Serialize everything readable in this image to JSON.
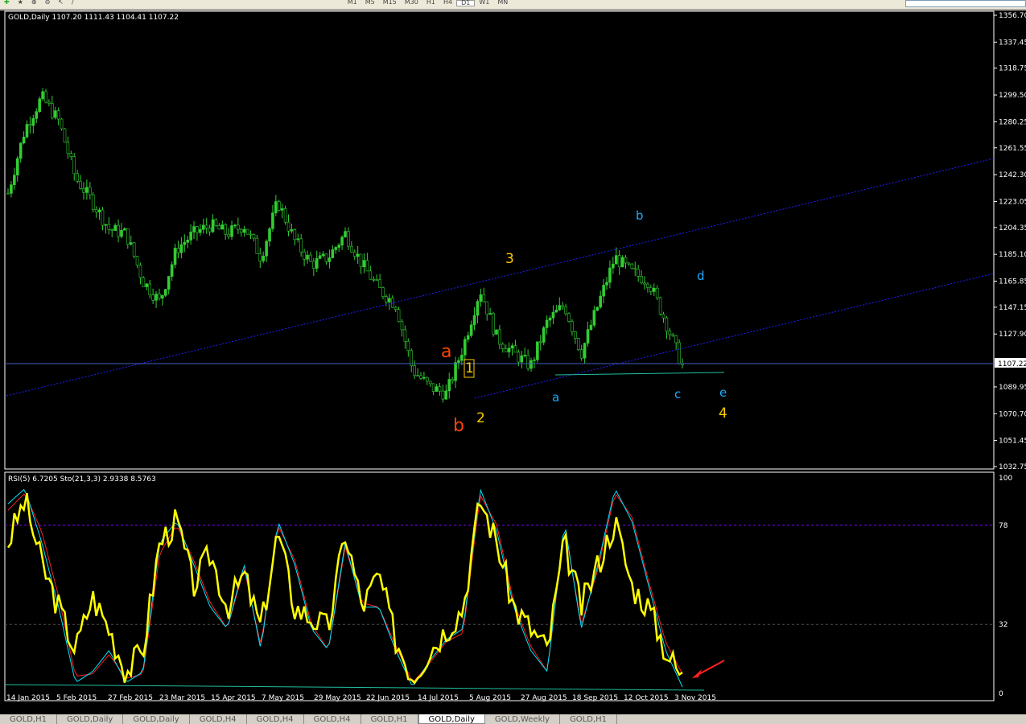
{
  "toolbar": {
    "timeframes": [
      "M1",
      "M5",
      "M15",
      "M30",
      "H1",
      "H4",
      "D1",
      "W1",
      "MN"
    ],
    "active": "D1"
  },
  "chart": {
    "header": "GOLD,Daily  1107.20 1111.43 1104.41 1107.22",
    "current_price": "1107.22",
    "price_ticks": [
      "1356.70",
      "1337.45",
      "1318.75",
      "1299.50",
      "1280.25",
      "1261.55",
      "1242.30",
      "1223.05",
      "1204.35",
      "1185.10",
      "1165.85",
      "1147.15",
      "1127.90",
      "1089.95",
      "1070.70",
      "1051.45",
      "1032.75"
    ],
    "wave_labels": [
      {
        "text": "a",
        "color": "#ff4500"
      },
      {
        "text": "b",
        "color": "#ff4500"
      },
      {
        "text": "1",
        "color": "#ffcc00"
      },
      {
        "text": "2",
        "color": "#ffcc00"
      },
      {
        "text": "3",
        "color": "#ffcc00"
      },
      {
        "text": "4",
        "color": "#ffcc00"
      },
      {
        "text": "a",
        "color": "#1eaaff"
      },
      {
        "text": "b",
        "color": "#1eaaff"
      },
      {
        "text": "c",
        "color": "#1eaaff"
      },
      {
        "text": "d",
        "color": "#1eaaff"
      },
      {
        "text": "e",
        "color": "#1eaaff"
      }
    ],
    "candle_color": "#32cd32",
    "channel_color": "#2020ff"
  },
  "indicator": {
    "header": "RSI(5) 6.7205  Sto(21,3,3) 2.9338 8.5763",
    "levels": [
      "100",
      "78",
      "32",
      "0"
    ],
    "rsi_color": "#ffff00",
    "stoch_main_color": "#00e5ff",
    "stoch_signal_color": "#ff2020"
  },
  "date_ticks": [
    "14 Jan 2015",
    "5 Feb 2015",
    "27 Feb 2015",
    "23 Mar 2015",
    "15 Apr 2015",
    "7 May 2015",
    "29 May 2015",
    "22 Jun 2015",
    "14 Jul 2015",
    "5 Aug 2015",
    "27 Aug 2015",
    "18 Sep 2015",
    "12 Oct 2015",
    "3 Nov 2015"
  ],
  "tabs": [
    {
      "label": "GOLD,H1"
    },
    {
      "label": "GOLD,Daily"
    },
    {
      "label": "GOLD,Daily"
    },
    {
      "label": "GOLD,H4"
    },
    {
      "label": "GOLD,H4"
    },
    {
      "label": "GOLD,H4"
    },
    {
      "label": "GOLD,H1"
    },
    {
      "label": "GOLD,Daily",
      "active": true
    },
    {
      "label": "GOLD,Weekly"
    },
    {
      "label": "GOLD,H1"
    }
  ],
  "chart_data": {
    "type": "candlestick",
    "symbol": "GOLD",
    "timeframe": "Daily",
    "ylim": [
      1032.75,
      1356.7
    ],
    "close_path": [
      1229,
      1275,
      1298,
      1281,
      1240,
      1223,
      1203,
      1200,
      1166,
      1151,
      1189,
      1200,
      1206,
      1200,
      1206,
      1183,
      1223,
      1195,
      1178,
      1183,
      1200,
      1178,
      1160,
      1149,
      1102,
      1090,
      1085,
      1119,
      1160,
      1125,
      1114,
      1105,
      1137,
      1149,
      1114,
      1149,
      1183,
      1172,
      1166,
      1137,
      1105
    ],
    "rsi_path": [
      70,
      90,
      60,
      40,
      20,
      45,
      30,
      10,
      20,
      70,
      80,
      50,
      65,
      40,
      55,
      30,
      75,
      40,
      35,
      30,
      75,
      40,
      55,
      25,
      8,
      20,
      30,
      40,
      90,
      70,
      40,
      30,
      20,
      70,
      40,
      60,
      80,
      50,
      40,
      20,
      7
    ],
    "stoch_main_path": [
      88,
      95,
      70,
      40,
      5,
      10,
      20,
      5,
      10,
      70,
      80,
      60,
      40,
      30,
      60,
      20,
      80,
      60,
      30,
      20,
      70,
      40,
      40,
      20,
      3,
      15,
      25,
      30,
      95,
      75,
      40,
      20,
      10,
      80,
      30,
      60,
      95,
      80,
      50,
      20,
      3
    ],
    "stoch_signal_path": [
      85,
      93,
      75,
      45,
      8,
      9,
      18,
      7,
      9,
      65,
      78,
      62,
      42,
      30,
      58,
      22,
      78,
      62,
      32,
      20,
      68,
      42,
      40,
      22,
      5,
      14,
      24,
      28,
      92,
      78,
      42,
      22,
      10,
      78,
      32,
      58,
      93,
      82,
      52,
      24,
      9
    ]
  }
}
